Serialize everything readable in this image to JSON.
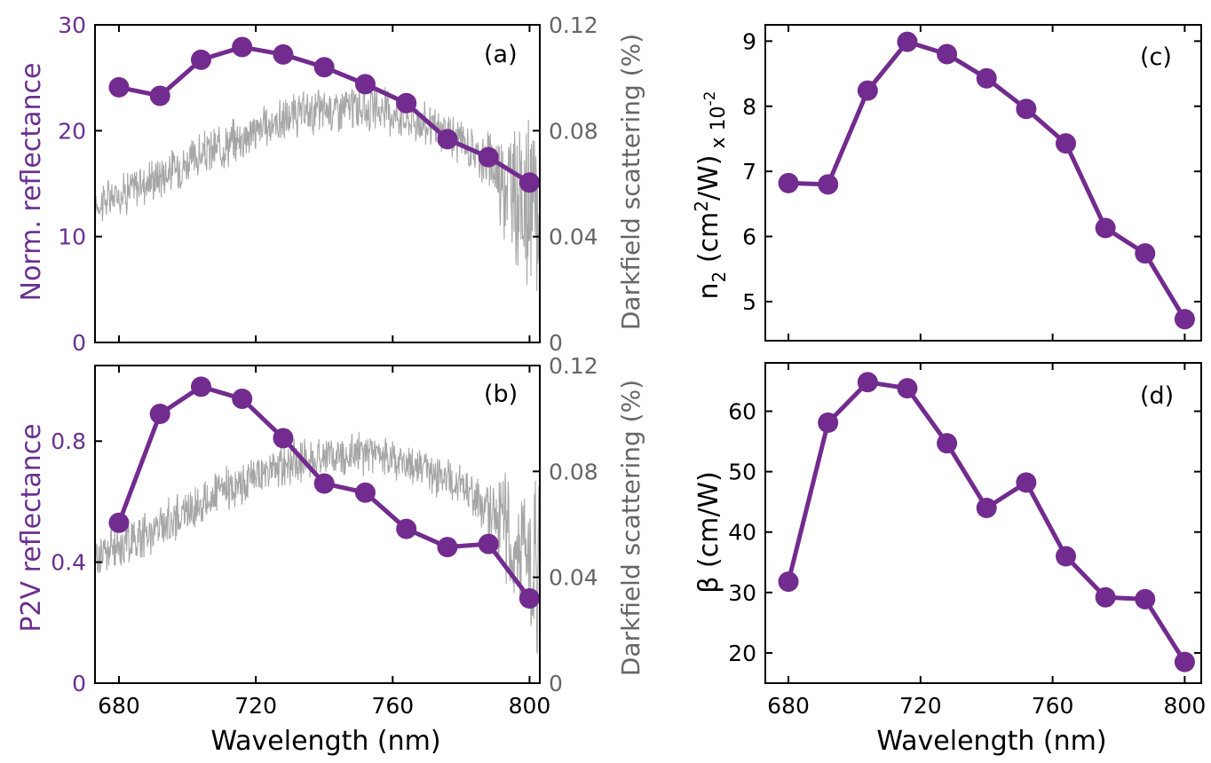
{
  "colors": {
    "series": "#722b8e",
    "axis_purple": "#6a2f8f",
    "darkfield": "#a6a6a6",
    "axis_gray": "#666666"
  },
  "chart_data": [
    {
      "id": "a",
      "type": "line",
      "panel_label": "(a)",
      "ylabel": "Norm. reflectance",
      "y2label": "Darkfield scattering (%)",
      "xlim": [
        673,
        803
      ],
      "ylim": [
        0,
        30
      ],
      "y2lim": [
        0,
        0.12
      ],
      "xticks": [
        680,
        720,
        760,
        800
      ],
      "yticks": [
        0,
        10,
        20,
        30
      ],
      "yticklabels": [
        "0",
        "10",
        "20",
        "30"
      ],
      "y2ticks": [
        0,
        0.04,
        0.08,
        0.12
      ],
      "y2ticklabels": [
        "0",
        "0.04",
        "0.08",
        "0.12"
      ],
      "series": [
        {
          "name": "reflectance",
          "x": [
            680,
            692,
            704,
            716,
            728,
            740,
            752,
            764,
            776,
            788,
            800
          ],
          "y": [
            24.1,
            23.3,
            26.7,
            27.9,
            27.2,
            26.0,
            24.4,
            22.6,
            19.2,
            17.5,
            15.1
          ]
        },
        {
          "name": "darkfield",
          "axis": "right",
          "x": [
            673,
            680,
            690,
            700,
            710,
            720,
            730,
            740,
            750,
            760,
            770,
            780,
            790,
            795,
            800,
            803
          ],
          "y": [
            0.052,
            0.056,
            0.062,
            0.068,
            0.074,
            0.08,
            0.085,
            0.088,
            0.089,
            0.087,
            0.082,
            0.076,
            0.066,
            0.058,
            0.05,
            0.044
          ]
        }
      ]
    },
    {
      "id": "b",
      "type": "line",
      "panel_label": "(b)",
      "xlabel": "Wavelength (nm)",
      "ylabel": "P2V reflectance",
      "y2label": "Darkfield scattering (%)",
      "xlim": [
        673,
        803
      ],
      "ylim": [
        0,
        1.05
      ],
      "y2lim": [
        0,
        0.12
      ],
      "xticks": [
        680,
        720,
        760,
        800
      ],
      "xticklabels": [
        "680",
        "720",
        "760",
        "800"
      ],
      "yticks": [
        0,
        0.4,
        0.8
      ],
      "yticklabels": [
        "0",
        "0.4",
        "0.8"
      ],
      "y2ticks": [
        0,
        0.04,
        0.08,
        0.12
      ],
      "y2ticklabels": [
        "0",
        "0.04",
        "0.08",
        "0.12"
      ],
      "series": [
        {
          "name": "reflectance",
          "x": [
            680,
            692,
            704,
            716,
            728,
            740,
            752,
            764,
            776,
            788,
            800
          ],
          "y": [
            0.53,
            0.89,
            0.98,
            0.94,
            0.81,
            0.66,
            0.63,
            0.51,
            0.45,
            0.46,
            0.28
          ]
        },
        {
          "name": "darkfield",
          "axis": "right",
          "x": [
            673,
            680,
            690,
            700,
            710,
            720,
            730,
            740,
            750,
            760,
            770,
            780,
            790,
            795,
            800,
            803
          ],
          "y": [
            0.048,
            0.052,
            0.058,
            0.065,
            0.072,
            0.078,
            0.083,
            0.086,
            0.087,
            0.085,
            0.08,
            0.074,
            0.064,
            0.056,
            0.048,
            0.042
          ]
        }
      ]
    },
    {
      "id": "c",
      "type": "line",
      "panel_label": "(c)",
      "ylabel_main": "n",
      "ylabel_sub": "2",
      "ylabel_unit": " (cm",
      "ylabel_sup": "2",
      "ylabel_end": "/W)",
      "ylabel_scale": "x 10",
      "ylabel_scale_exp": "-2",
      "xlim": [
        673,
        805
      ],
      "ylim": [
        4.4,
        9.25
      ],
      "xticks": [
        680,
        720,
        760,
        800
      ],
      "yticks": [
        5,
        6,
        7,
        8,
        9
      ],
      "yticklabels": [
        "5",
        "6",
        "7",
        "8",
        "9"
      ],
      "series": [
        {
          "name": "n2",
          "x": [
            680,
            692,
            704,
            716,
            728,
            740,
            752,
            764,
            776,
            788,
            800
          ],
          "y": [
            6.82,
            6.8,
            8.24,
            8.99,
            8.8,
            8.43,
            7.96,
            7.43,
            6.13,
            5.74,
            4.73
          ]
        }
      ]
    },
    {
      "id": "d",
      "type": "line",
      "panel_label": "(d)",
      "xlabel": "Wavelength (nm)",
      "ylabel": "β (cm/W)",
      "xlim": [
        673,
        805
      ],
      "ylim": [
        15,
        68
      ],
      "xticks": [
        680,
        720,
        760,
        800
      ],
      "xticklabels": [
        "680",
        "720",
        "760",
        "800"
      ],
      "yticks": [
        20,
        30,
        40,
        50,
        60
      ],
      "yticklabels": [
        "20",
        "30",
        "40",
        "50",
        "60"
      ],
      "series": [
        {
          "name": "beta",
          "x": [
            680,
            692,
            704,
            716,
            728,
            740,
            752,
            764,
            776,
            788,
            800
          ],
          "y": [
            31.8,
            58.1,
            64.8,
            63.8,
            54.7,
            44.0,
            48.2,
            36.0,
            29.2,
            28.9,
            18.5
          ]
        }
      ]
    }
  ]
}
